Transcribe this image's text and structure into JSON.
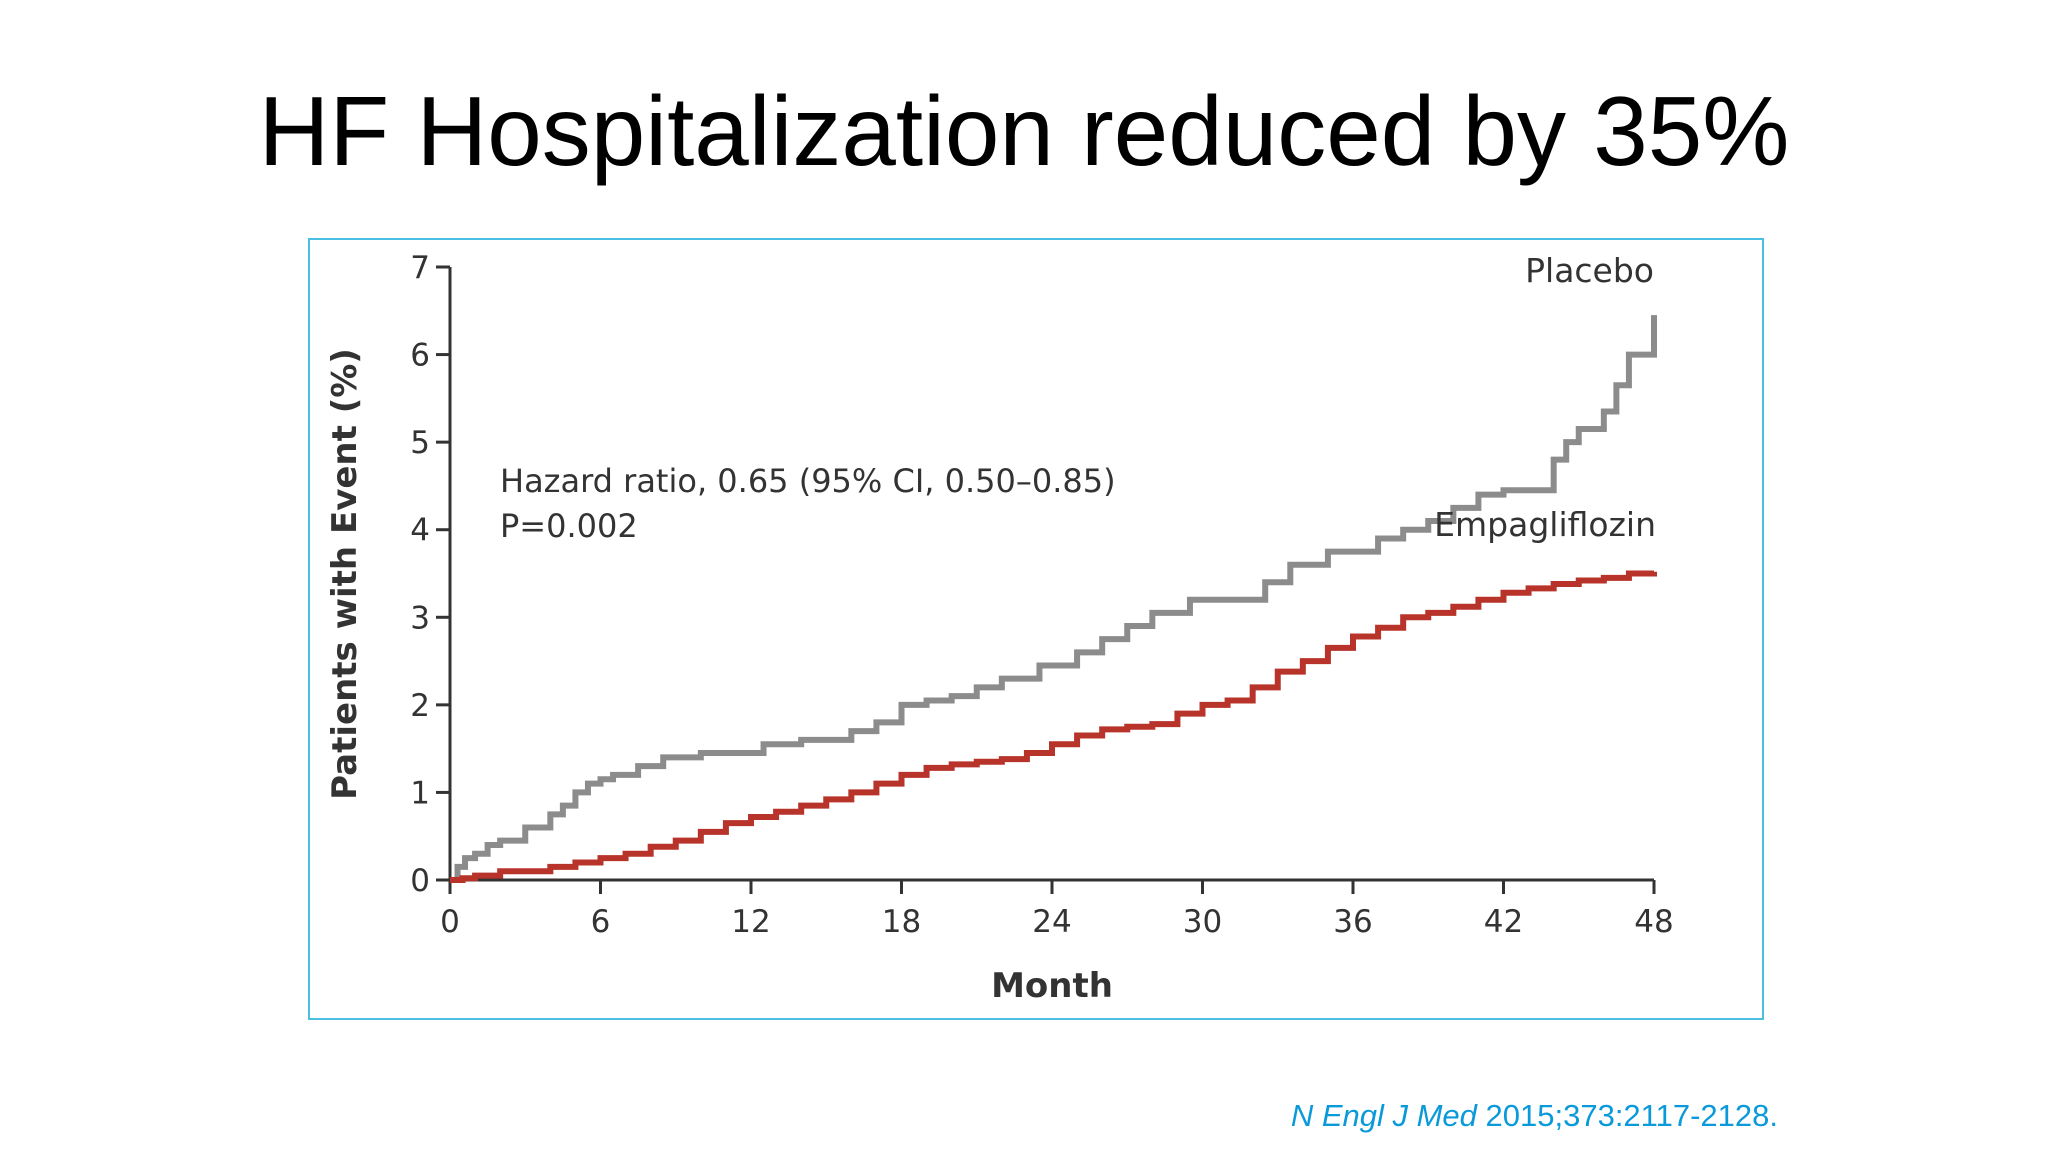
{
  "slide": {
    "title": "HF Hospitalization reduced by 35%"
  },
  "citation": {
    "journal": "N Engl J Med",
    "ref": " 2015;373:2117-2128."
  },
  "colors": {
    "frame_border": "#4bbfe3",
    "placebo": "#8c8c8c",
    "empagliflozin": "#b8342a",
    "citation": "#0a9ad9"
  },
  "chart_data": {
    "type": "line",
    "step": true,
    "xlabel": "Month",
    "ylabel": "Patients with Event (%)",
    "xlim": [
      0,
      48
    ],
    "ylim": [
      0,
      7
    ],
    "x_ticks": [
      0,
      6,
      12,
      18,
      24,
      30,
      36,
      42,
      48
    ],
    "y_ticks": [
      0,
      1,
      2,
      3,
      4,
      5,
      6,
      7
    ],
    "annotation": {
      "line1": "Hazard ratio, 0.65 (95% CI, 0.50–0.85)",
      "line2": "P=0.002"
    },
    "series": [
      {
        "name": "Placebo",
        "x": [
          0,
          0.3,
          0.6,
          1.0,
          1.5,
          2.0,
          3.0,
          4.0,
          4.5,
          5.0,
          5.5,
          6.0,
          6.5,
          7.5,
          8.5,
          10.0,
          11.0,
          12.5,
          14.0,
          16.0,
          17.0,
          18.0,
          19.0,
          20.0,
          21.0,
          22.0,
          23.5,
          25.0,
          26.0,
          27.0,
          28.0,
          29.5,
          31.0,
          32.5,
          33.5,
          35.0,
          37.0,
          38.0,
          39.0,
          40.0,
          41.0,
          42.0,
          43.5,
          44.0,
          44.5,
          45.0,
          46.0,
          46.5,
          47.0,
          48.0
        ],
        "values": [
          0,
          0.15,
          0.25,
          0.3,
          0.4,
          0.45,
          0.6,
          0.75,
          0.85,
          1.0,
          1.1,
          1.15,
          1.2,
          1.3,
          1.4,
          1.45,
          1.45,
          1.55,
          1.6,
          1.7,
          1.8,
          2.0,
          2.05,
          2.1,
          2.2,
          2.3,
          2.45,
          2.6,
          2.75,
          2.9,
          3.05,
          3.2,
          3.2,
          3.4,
          3.6,
          3.75,
          3.9,
          4.0,
          4.1,
          4.25,
          4.4,
          4.45,
          4.45,
          4.8,
          5.0,
          5.15,
          5.35,
          5.65,
          6.0,
          6.45
        ]
      },
      {
        "name": "Empagliflozin",
        "x": [
          0,
          0.5,
          1.0,
          2.0,
          4.0,
          5.0,
          6.0,
          7.0,
          8.0,
          9.0,
          10.0,
          11.0,
          12.0,
          13.0,
          14.0,
          15.0,
          16.0,
          17.0,
          18.0,
          19.0,
          20.0,
          21.0,
          22.0,
          23.0,
          24.0,
          25.0,
          26.0,
          27.0,
          28.0,
          29.0,
          30.0,
          31.0,
          32.0,
          33.0,
          34.0,
          35.0,
          36.0,
          37.0,
          38.0,
          39.0,
          40.0,
          41.0,
          42.0,
          43.0,
          44.0,
          45.0,
          46.0,
          47.0,
          48.0
        ],
        "values": [
          0,
          0.02,
          0.05,
          0.1,
          0.15,
          0.2,
          0.25,
          0.3,
          0.38,
          0.45,
          0.55,
          0.65,
          0.72,
          0.78,
          0.85,
          0.92,
          1.0,
          1.1,
          1.2,
          1.28,
          1.32,
          1.35,
          1.38,
          1.45,
          1.55,
          1.65,
          1.72,
          1.75,
          1.78,
          1.9,
          2.0,
          2.05,
          2.2,
          2.38,
          2.5,
          2.65,
          2.78,
          2.88,
          3.0,
          3.05,
          3.12,
          3.2,
          3.28,
          3.33,
          3.38,
          3.42,
          3.45,
          3.5,
          3.52
        ]
      }
    ]
  }
}
